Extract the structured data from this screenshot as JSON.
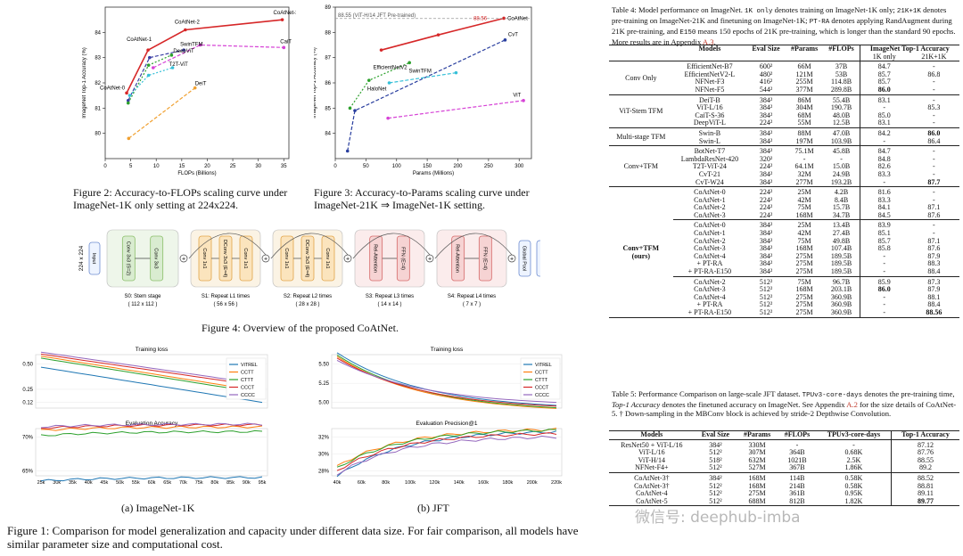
{
  "fig2": {
    "caption": "Figure 2: Accuracy-to-FLOPs scaling curve under ImageNet-1K only setting at 224x224.",
    "chart_data": {
      "type": "line",
      "xlabel": "FLOPs (Billions)",
      "ylabel": "ImageNet Top-1 Accuracy (%)",
      "xlim": [
        0,
        36
      ],
      "ylim": [
        79,
        85
      ],
      "xticks": [
        0,
        5,
        10,
        15,
        20,
        25,
        30,
        35
      ],
      "yticks": [
        80,
        81,
        82,
        83,
        84
      ],
      "series": [
        {
          "name": "CoAtNet",
          "color": "#d62728",
          "points": [
            [
              4.2,
              81.6
            ],
            [
              8.4,
              83.3
            ],
            [
              15.7,
              84.1
            ],
            [
              34.7,
              84.5
            ]
          ],
          "labels": [
            "CoAtNet-0",
            "CoAtNet-1",
            "CoAtNet-2",
            "CoAtNet-3"
          ]
        },
        {
          "name": "SwinTFM",
          "color": "#3b3fa5",
          "points": [
            [
              4.5,
              81.3
            ],
            [
              8.7,
              83.0
            ],
            [
              15.4,
              83.3
            ]
          ]
        },
        {
          "name": "DeepViT",
          "color": "#2ca02c",
          "points": [
            [
              4.5,
              81.2
            ],
            [
              8.5,
              82.7
            ],
            [
              13,
              83.1
            ]
          ]
        },
        {
          "name": "CaiT",
          "color": "#d642d6",
          "points": [
            [
              9.4,
              82.6
            ],
            [
              18.6,
              83.5
            ],
            [
              35,
              83.4
            ]
          ]
        },
        {
          "name": "T2T-ViT",
          "color": "#36c0d8",
          "points": [
            [
              4.8,
              81.5
            ],
            [
              8.5,
              82.3
            ],
            [
              13.2,
              82.6
            ]
          ]
        },
        {
          "name": "DeiT",
          "color": "#f0a030",
          "points": [
            [
              4.6,
              79.8
            ],
            [
              17.6,
              81.8
            ]
          ]
        }
      ]
    }
  },
  "fig3": {
    "caption": "Figure 3: Accuracy-to-Params scaling curve under ImageNet-21K ⇒ ImageNet-1K setting.",
    "chart_data": {
      "type": "line",
      "xlabel": "Params (Millions)",
      "ylabel": "ImageNet Top-1 Accuracy (%)",
      "xlim": [
        0,
        320
      ],
      "ylim": [
        83,
        89
      ],
      "xticks": [
        0,
        50,
        100,
        150,
        200,
        250,
        300
      ],
      "yticks": [
        84,
        85,
        86,
        87,
        88,
        89
      ],
      "annotation": "88.55 (ViT-H/14 JFT Pre-trained)",
      "annotation_value": 88.55,
      "coatnet_label": "88.56",
      "series": [
        {
          "name": "CoAtNet",
          "color": "#d62728",
          "points": [
            [
              75,
              87.3
            ],
            [
              168,
              87.9
            ],
            [
              275,
              88.56
            ]
          ]
        },
        {
          "name": "CvT",
          "color": "#2a3f9f",
          "points": [
            [
              20,
              83.3
            ],
            [
              32,
              84.9
            ],
            [
              277,
              87.7
            ]
          ]
        },
        {
          "name": "EfficientNetV2",
          "color": "#2ca02c",
          "points": [
            [
              24,
              85.0
            ],
            [
              55,
              86.1
            ],
            [
              121,
              86.8
            ]
          ]
        },
        {
          "name": "SwinTFM",
          "color": "#36c0d8",
          "points": [
            [
              88,
              86.0
            ],
            [
              197,
              86.4
            ]
          ]
        },
        {
          "name": "HaloNet",
          "color": "#555555",
          "points": []
        },
        {
          "name": "ViT",
          "color": "#d642d6",
          "points": [
            [
              86,
              84.6
            ],
            [
              307,
              85.3
            ]
          ]
        }
      ]
    }
  },
  "fig4": {
    "caption": "Figure 4: Overview of the proposed CoAtNet.",
    "input_size": "224 x 224",
    "input": "Input",
    "stages": [
      {
        "label": "S0: Stem stage",
        "size": "( 112 x 112 )",
        "blocks": [
          "Conv 3x3 (S=2)",
          "Conv 3x3"
        ]
      },
      {
        "label": "S1: Repeat L1 times",
        "size": "( 56 x 56 )",
        "blocks": [
          "Conv 1x1",
          "DConv 3x3 (E=4)",
          "Conv 1x1"
        ]
      },
      {
        "label": "S2: Repeat L2 times",
        "size": "( 28 x 28 )",
        "blocks": [
          "Conv 1x1",
          "DConv 3x3 (E=4)",
          "Conv 1x1"
        ]
      },
      {
        "label": "S3: Repeat L3 times",
        "size": "( 14 x 14 )",
        "blocks": [
          "Rel-Attention",
          "FFN (E=4)"
        ]
      },
      {
        "label": "S4: Repeat L4 times",
        "size": "( 7 x 7 )",
        "blocks": [
          "Rel-Attention",
          "FFN (E=4)"
        ]
      }
    ],
    "tail": [
      "Global Pool",
      "FC",
      "Output"
    ]
  },
  "fig1": {
    "caption": "Figure 1: Comparison for model generalization and capacity under different data size. For fair comparison, all models have similar parameter size and computational cost.",
    "sub_a": "(a) ImageNet-1K",
    "sub_b": "(b) JFT",
    "legend": [
      "ViTREL",
      "CCTT",
      "CTTT",
      "CCCT",
      "CCCC"
    ],
    "legend_colors": [
      "#1f77b4",
      "#ff7f0e",
      "#2ca02c",
      "#d62728",
      "#9467bd"
    ],
    "chart_data": [
      {
        "type": "line",
        "title": "Training loss",
        "yticks": [
          0.12,
          0.25,
          0.5
        ],
        "yticklabels": [
          "0.12",
          "0.25",
          "0.50"
        ],
        "series": [
          {
            "name": "ViTREL",
            "values": [
              0.47,
              0.12
            ]
          },
          {
            "name": "CCTT",
            "values": [
              0.58,
              0.23
            ]
          },
          {
            "name": "CTTT",
            "values": [
              0.56,
              0.21
            ]
          },
          {
            "name": "CCCT",
            "values": [
              0.6,
              0.28
            ]
          },
          {
            "name": "CCCC",
            "values": [
              0.62,
              0.3
            ]
          }
        ]
      },
      {
        "type": "line",
        "title": "Evaluation Accuracy",
        "xlabel": "",
        "yticks": [
          65,
          70
        ],
        "yticklabels": [
          "65%",
          "70%"
        ],
        "xticks": [
          "25k",
          "30k",
          "35k",
          "40k",
          "45k",
          "50k",
          "55k",
          "60k",
          "65k",
          "70k",
          "75k",
          "80k",
          "85k",
          "90k",
          "95k"
        ],
        "series": [
          {
            "name": "ViTREL",
            "values": [
              63.5,
              64.0
            ]
          },
          {
            "name": "CCTT",
            "values": [
              71.0,
              71.5
            ]
          },
          {
            "name": "CTTT",
            "values": [
              70.2,
              70.8
            ]
          },
          {
            "name": "CCCT",
            "values": [
              71.3,
              71.8
            ]
          },
          {
            "name": "CCCC",
            "values": [
              71.5,
              71.9
            ]
          }
        ]
      },
      {
        "type": "line",
        "title": "Training loss",
        "yticks": [
          5.0,
          5.25,
          5.5
        ],
        "yticklabels": [
          "5.00",
          "5.25",
          "5.50"
        ],
        "series": [
          {
            "name": "ViTREL",
            "values": [
              5.65,
              4.96
            ]
          },
          {
            "name": "CCTT",
            "values": [
              5.6,
              4.92
            ]
          },
          {
            "name": "CTTT",
            "values": [
              5.62,
              4.93
            ]
          },
          {
            "name": "CCCT",
            "values": [
              5.58,
              4.95
            ]
          },
          {
            "name": "CCCC",
            "values": [
              5.55,
              5.0
            ]
          }
        ]
      },
      {
        "type": "line",
        "title": "Evaluation Precision@1",
        "yticks": [
          28,
          30,
          32
        ],
        "yticklabels": [
          "28%",
          "30%",
          "32%"
        ],
        "xticks": [
          "40k",
          "60k",
          "80k",
          "100k",
          "120k",
          "140k",
          "160k",
          "180k",
          "200k",
          "220k"
        ],
        "series": [
          {
            "name": "ViTREL",
            "values": [
              27.3,
              32.6
            ]
          },
          {
            "name": "CCTT",
            "values": [
              28.5,
              32.9
            ]
          },
          {
            "name": "CTTT",
            "values": [
              28.3,
              32.8
            ]
          },
          {
            "name": "CCCT",
            "values": [
              28.0,
              32.4
            ]
          },
          {
            "name": "CCCC",
            "values": [
              27.6,
              32.0
            ]
          }
        ]
      }
    ]
  },
  "table4": {
    "caption_pre": "Table 4: Model performance on ImageNet. ",
    "caption_code1": "1K only",
    "caption_mid1": " denotes training on ImageNet-1K only; ",
    "caption_code2": "21K+1K",
    "caption_mid2": " denotes pre-training on ImageNet-21K and finetuning on ImageNet-1K; ",
    "caption_code3": "PT-RA",
    "caption_mid3": " denotes applying RandAugment during 21K pre-training, and ",
    "caption_code4": "E150",
    "caption_mid4": " means 150 epochs of 21K pre-training, which is longer than the standard 90 epochs. More results are in Appendix ",
    "caption_link": "A.3",
    "caption_end": ".",
    "headers": [
      "Models",
      "Eval Size",
      "#Params",
      "#FLOPs",
      "ImageNet Top-1 Accuracy"
    ],
    "subheaders": [
      "1K only",
      "21K+1K"
    ],
    "groups": [
      {
        "name": "Conv Only",
        "rows": [
          [
            "EfficientNet-B7",
            "600²",
            "66M",
            "37B",
            "84.7",
            "-"
          ],
          [
            "EfficientNetV2-L",
            "480²",
            "121M",
            "53B",
            "85.7",
            "86.8"
          ],
          [
            "NFNet-F3",
            "416²",
            "255M",
            "114.8B",
            "85.7",
            "-"
          ],
          [
            "NFNet-F5",
            "544²",
            "377M",
            "289.8B",
            "86.0",
            "-"
          ]
        ]
      },
      {
        "name": "ViT-Stem TFM",
        "rows": [
          [
            "DeiT-B",
            "384²",
            "86M",
            "55.4B",
            "83.1",
            "-"
          ],
          [
            "ViT-L/16",
            "384²",
            "304M",
            "190.7B",
            "-",
            "85.3"
          ],
          [
            "CaiT-S-36",
            "384²",
            "68M",
            "48.0B",
            "85.0",
            "-"
          ],
          [
            "DeepViT-L",
            "224²",
            "55M",
            "12.5B",
            "83.1",
            "-"
          ]
        ]
      },
      {
        "name": "Multi-stage TFM",
        "rows": [
          [
            "Swin-B",
            "384²",
            "88M",
            "47.0B",
            "84.2",
            "86.0"
          ],
          [
            "Swin-L",
            "384²",
            "197M",
            "103.9B",
            "-",
            "86.4"
          ]
        ]
      },
      {
        "name": "Conv+TFM",
        "rows": [
          [
            "BotNet-T7",
            "384²",
            "75.1M",
            "45.8B",
            "84.7",
            "-"
          ],
          [
            "LambdaResNet-420",
            "320²",
            "-",
            "-",
            "84.8",
            "-"
          ],
          [
            "T2T-ViT-24",
            "224²",
            "64.1M",
            "15.0B",
            "82.6",
            "-"
          ],
          [
            "CvT-21",
            "384²",
            "32M",
            "24.9B",
            "83.3",
            "-"
          ],
          [
            "CvT-W24",
            "384²",
            "277M",
            "193.2B",
            "-",
            "87.7"
          ]
        ]
      }
    ],
    "ours_name": "Conv+TFM",
    "ours_sub": "(ours)",
    "ours_blocks": [
      [
        [
          "CoAtNet-0",
          "224²",
          "25M",
          "4.2B",
          "81.6",
          "-"
        ],
        [
          "CoAtNet-1",
          "224²",
          "42M",
          "8.4B",
          "83.3",
          "-"
        ],
        [
          "CoAtNet-2",
          "224²",
          "75M",
          "15.7B",
          "84.1",
          "87.1"
        ],
        [
          "CoAtNet-3",
          "224²",
          "168M",
          "34.7B",
          "84.5",
          "87.6"
        ]
      ],
      [
        [
          "CoAtNet-0",
          "384²",
          "25M",
          "13.4B",
          "83.9",
          "-"
        ],
        [
          "CoAtNet-1",
          "384²",
          "42M",
          "27.4B",
          "85.1",
          "-"
        ],
        [
          "CoAtNet-2",
          "384²",
          "75M",
          "49.8B",
          "85.7",
          "87.1"
        ],
        [
          "CoAtNet-3",
          "384²",
          "168M",
          "107.4B",
          "85.8",
          "87.6"
        ],
        [
          "CoAtNet-4",
          "384²",
          "275M",
          "189.5B",
          "-",
          "87.9"
        ],
        [
          "+ PT-RA",
          "384²",
          "275M",
          "189.5B",
          "-",
          "88.3"
        ],
        [
          "+ PT-RA-E150",
          "384²",
          "275M",
          "189.5B",
          "-",
          "88.4"
        ]
      ],
      [
        [
          "CoAtNet-2",
          "512²",
          "75M",
          "96.7B",
          "85.9",
          "87.3"
        ],
        [
          "CoAtNet-3",
          "512²",
          "168M",
          "203.1B",
          "86.0",
          "87.9"
        ],
        [
          "CoAtNet-4",
          "512²",
          "275M",
          "360.9B",
          "-",
          "88.1"
        ],
        [
          "+ PT-RA",
          "512²",
          "275M",
          "360.9B",
          "-",
          "88.4"
        ],
        [
          "+ PT-RA-E150",
          "512²",
          "275M",
          "360.9B",
          "-",
          "88.56"
        ]
      ]
    ]
  },
  "table5": {
    "caption_pre": "Table 5: Performance Comparison on large-scale JFT dataset. ",
    "caption_code": "TPUv3-core-days",
    "caption_mid1": " denotes the pre-training time, ",
    "caption_em": "Top-1 Accuracy",
    "caption_mid2": " denotes the finetuned accuracy on ImageNet. See Appendix ",
    "caption_link": "A.2",
    "caption_end": " for the size details of CoAtNet-5. † Down-sampling in the MBConv block is achieved by stride-2 Depthwise Convolution.",
    "headers": [
      "Models",
      "Eval Size",
      "#Params",
      "#FLOPs",
      "TPUv3-core-days",
      "Top-1 Accuracy"
    ],
    "rows1": [
      [
        "ResNet50 + ViT-L/16",
        "384²",
        "330M",
        "-",
        "-",
        "87.12"
      ],
      [
        "ViT-L/16",
        "512²",
        "307M",
        "364B",
        "0.68K",
        "87.76"
      ],
      [
        "ViT-H/14",
        "518²",
        "632M",
        "1021B",
        "2.5K",
        "88.55"
      ],
      [
        "NFNet-F4+",
        "512²",
        "527M",
        "367B",
        "1.86K",
        "89.2"
      ]
    ],
    "rows2": [
      [
        "CoAtNet-3†",
        "384²",
        "168M",
        "114B",
        "0.58K",
        "88.52"
      ],
      [
        "CoAtNet-3†",
        "512²",
        "168M",
        "214B",
        "0.58K",
        "88.81"
      ],
      [
        "CoAtNet-4",
        "512²",
        "275M",
        "361B",
        "0.95K",
        "89.11"
      ],
      [
        "CoAtNet-5",
        "512²",
        "688M",
        "812B",
        "1.82K",
        "89.77"
      ]
    ]
  },
  "watermark": "微信号: deephub-imba"
}
